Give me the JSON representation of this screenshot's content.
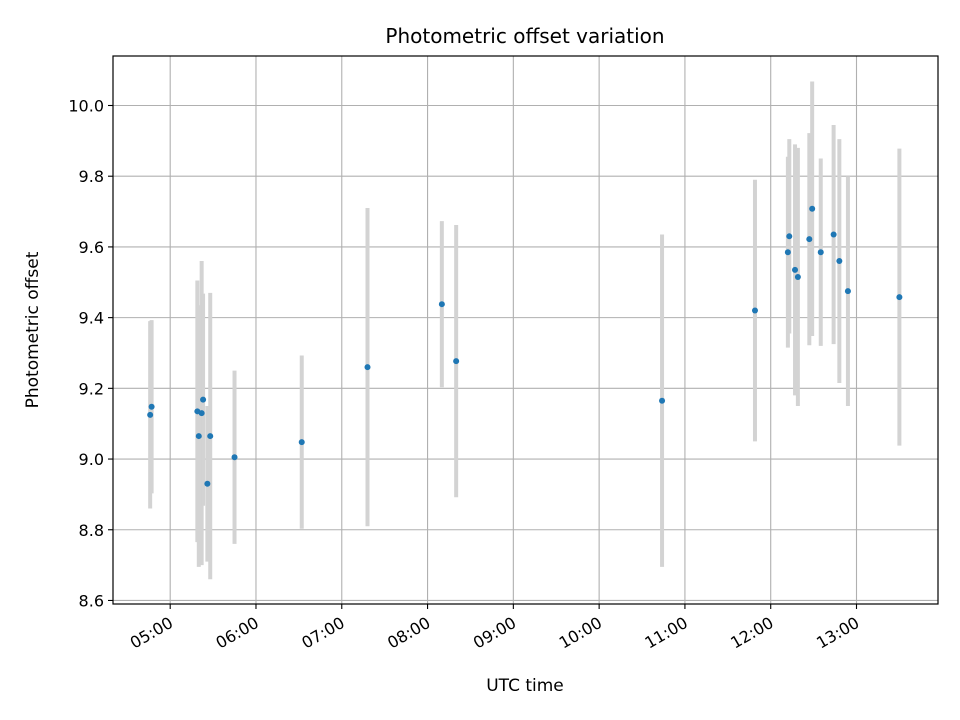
{
  "chart_data": {
    "type": "scatter",
    "title": "Photometric offset variation",
    "xlabel": "UTC time",
    "ylabel": "Photometric offset",
    "x_format": "HH:MM",
    "xlim": [
      "04:20",
      "13:57"
    ],
    "ylim": [
      8.59,
      10.14
    ],
    "x_ticks": [
      "05:00",
      "06:00",
      "07:00",
      "08:00",
      "09:00",
      "10:00",
      "11:00",
      "12:00",
      "13:00"
    ],
    "y_ticks": [
      "8.6",
      "8.8",
      "9.0",
      "9.2",
      "9.4",
      "9.6",
      "9.8",
      "10.0"
    ],
    "grid": true,
    "marker_color": "#1f77b4",
    "errorbar_color": "#d3d3d3",
    "points": [
      {
        "x": "04:46",
        "y": 9.125,
        "err": 0.265
      },
      {
        "x": "04:47",
        "y": 9.148,
        "err": 0.245
      },
      {
        "x": "05:19",
        "y": 9.135,
        "err": 0.37
      },
      {
        "x": "05:20",
        "y": 9.065,
        "err": 0.37
      },
      {
        "x": "05:22",
        "y": 9.13,
        "err": 0.43
      },
      {
        "x": "05:23",
        "y": 9.168,
        "err": 0.3
      },
      {
        "x": "05:26",
        "y": 8.93,
        "err": 0.22
      },
      {
        "x": "05:28",
        "y": 9.065,
        "err": 0.405
      },
      {
        "x": "05:45",
        "y": 9.005,
        "err": 0.245
      },
      {
        "x": "06:32",
        "y": 9.048,
        "err": 0.245
      },
      {
        "x": "07:18",
        "y": 9.26,
        "err": 0.45
      },
      {
        "x": "08:10",
        "y": 9.438,
        "err": 0.235
      },
      {
        "x": "08:20",
        "y": 9.277,
        "err": 0.385
      },
      {
        "x": "10:44",
        "y": 9.165,
        "err": 0.47
      },
      {
        "x": "11:49",
        "y": 9.42,
        "err": 0.37
      },
      {
        "x": "12:12",
        "y": 9.585,
        "err": 0.27
      },
      {
        "x": "12:13",
        "y": 9.63,
        "err": 0.275
      },
      {
        "x": "12:17",
        "y": 9.535,
        "err": 0.355
      },
      {
        "x": "12:19",
        "y": 9.515,
        "err": 0.365
      },
      {
        "x": "12:27",
        "y": 9.622,
        "err": 0.3
      },
      {
        "x": "12:29",
        "y": 9.708,
        "err": 0.36
      },
      {
        "x": "12:35",
        "y": 9.585,
        "err": 0.265
      },
      {
        "x": "12:44",
        "y": 9.635,
        "err": 0.31
      },
      {
        "x": "12:48",
        "y": 9.56,
        "err": 0.345
      },
      {
        "x": "12:54",
        "y": 9.475,
        "err": 0.325
      },
      {
        "x": "13:30",
        "y": 9.458,
        "err": 0.42
      }
    ]
  }
}
